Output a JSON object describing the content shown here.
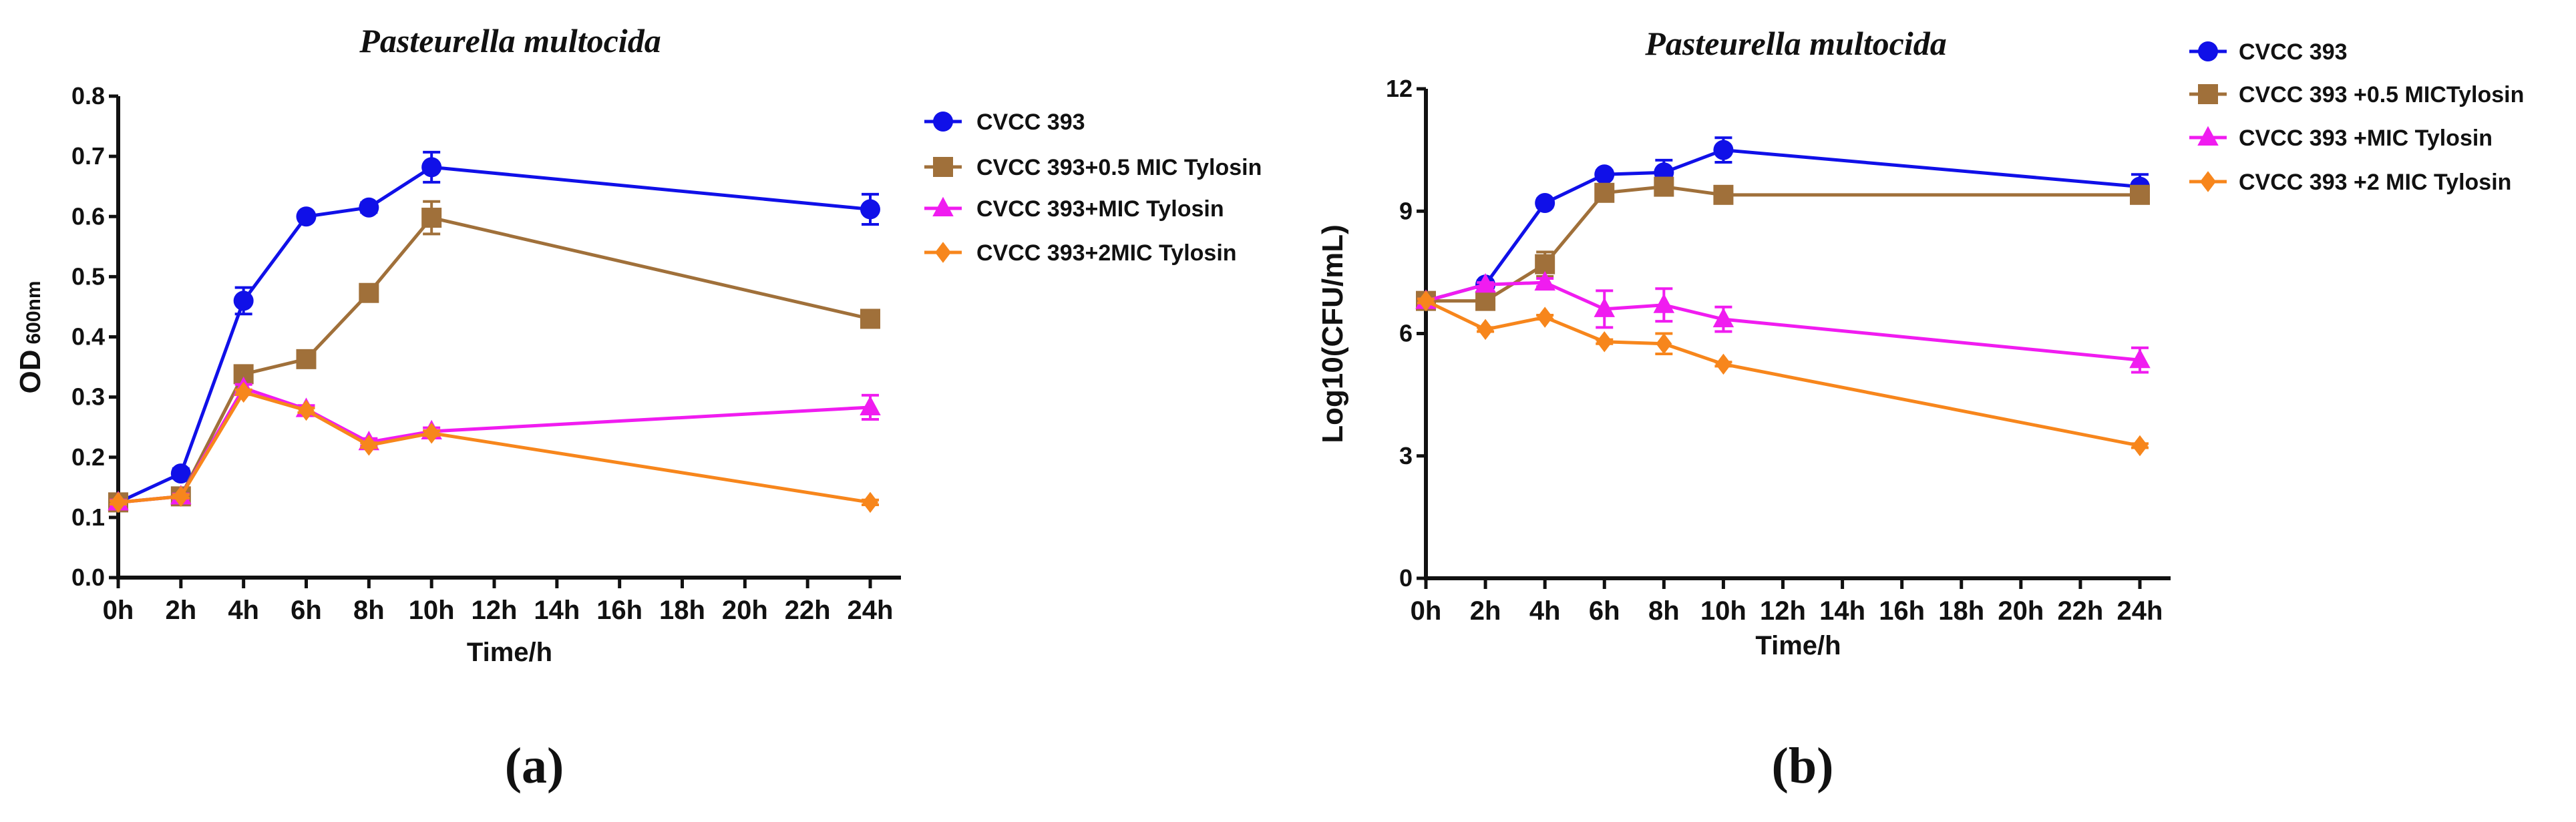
{
  "chart_data": [
    {
      "type": "line",
      "panel_label": "(a)",
      "title": "Pasteurella multocida",
      "xlabel": "Time/h",
      "ylabel_main": "OD",
      "ylabel_sub": "600nm",
      "x_ticks": [
        "0h",
        "2h",
        "4h",
        "6h",
        "8h",
        "10h",
        "12h",
        "14h",
        "16h",
        "18h",
        "20h",
        "22h",
        "24h"
      ],
      "y_ticks": [
        "0.0",
        "0.1",
        "0.2",
        "0.3",
        "0.4",
        "0.5",
        "0.6",
        "0.7",
        "0.8"
      ],
      "xlim": [
        0,
        24
      ],
      "ylim": [
        0,
        0.8
      ],
      "x": [
        0,
        2,
        4,
        6,
        8,
        10,
        24
      ],
      "legend_position": "right",
      "series": [
        {
          "name": "CVCC 393",
          "color": "#1010e8",
          "marker": "circle",
          "values": [
            0.125,
            0.173,
            0.46,
            0.6,
            0.615,
            0.682,
            0.612
          ],
          "errors": [
            0.005,
            0.008,
            0.022,
            0.006,
            0.008,
            0.025,
            0.025
          ]
        },
        {
          "name": "CVCC 393+0.5 MIC Tylosin",
          "color": "#a0703a",
          "marker": "square",
          "values": [
            0.125,
            0.135,
            0.338,
            0.363,
            0.473,
            0.598,
            0.43
          ],
          "errors": [
            0.005,
            0.006,
            0.008,
            0.008,
            0.01,
            0.027,
            0.008
          ]
        },
        {
          "name": "CVCC 393+MIC Tylosin",
          "color": "#f01cf0",
          "marker": "triangle",
          "values": [
            0.125,
            0.135,
            0.315,
            0.28,
            0.225,
            0.243,
            0.283
          ],
          "errors": [
            0.004,
            0.004,
            0.006,
            0.006,
            0.006,
            0.006,
            0.02
          ]
        },
        {
          "name": "CVCC 393+2MIC Tylosin",
          "color": "#f7861c",
          "marker": "diamond",
          "values": [
            0.125,
            0.135,
            0.308,
            0.278,
            0.22,
            0.24,
            0.125
          ],
          "errors": [
            0.003,
            0.003,
            0.004,
            0.004,
            0.004,
            0.004,
            0.004
          ]
        }
      ]
    },
    {
      "type": "line",
      "panel_label": "(b)",
      "title": "Pasteurella multocida",
      "xlabel": "Time/h",
      "ylabel_main": "Log10(CFU/mL)",
      "ylabel_sub": "",
      "x_ticks": [
        "0h",
        "2h",
        "4h",
        "6h",
        "8h",
        "10h",
        "12h",
        "14h",
        "16h",
        "18h",
        "20h",
        "22h",
        "24h"
      ],
      "y_ticks": [
        "0",
        "3",
        "6",
        "9",
        "12"
      ],
      "xlim": [
        0,
        24
      ],
      "ylim": [
        0,
        12
      ],
      "x": [
        0,
        2,
        4,
        6,
        8,
        10,
        24
      ],
      "legend_position": "top-right",
      "series": [
        {
          "name": "CVCC 393",
          "color": "#1010e8",
          "marker": "circle",
          "values": [
            6.8,
            7.2,
            9.2,
            9.9,
            9.95,
            10.5,
            9.6
          ],
          "errors": [
            0.1,
            0.1,
            0.1,
            0.1,
            0.3,
            0.3,
            0.3
          ]
        },
        {
          "name": "CVCC 393 +0.5 MICTylosin",
          "color": "#a0703a",
          "marker": "square",
          "values": [
            6.8,
            6.8,
            7.7,
            9.45,
            9.6,
            9.4,
            9.4
          ],
          "errors": [
            0.1,
            0.1,
            0.3,
            0.1,
            0.1,
            0.1,
            0.1
          ]
        },
        {
          "name": "CVCC 393 +MIC Tylosin",
          "color": "#f01cf0",
          "marker": "triangle",
          "values": [
            6.8,
            7.2,
            7.25,
            6.6,
            6.7,
            6.35,
            5.35
          ],
          "errors": [
            0.05,
            0.05,
            0.1,
            0.45,
            0.4,
            0.3,
            0.3
          ]
        },
        {
          "name": "CVCC 393 +2 MIC Tylosin",
          "color": "#f7861c",
          "marker": "diamond",
          "values": [
            6.8,
            6.1,
            6.4,
            5.8,
            5.75,
            5.25,
            3.25
          ],
          "errors": [
            0.05,
            0.05,
            0.05,
            0.05,
            0.25,
            0.05,
            0.05
          ]
        }
      ]
    }
  ]
}
